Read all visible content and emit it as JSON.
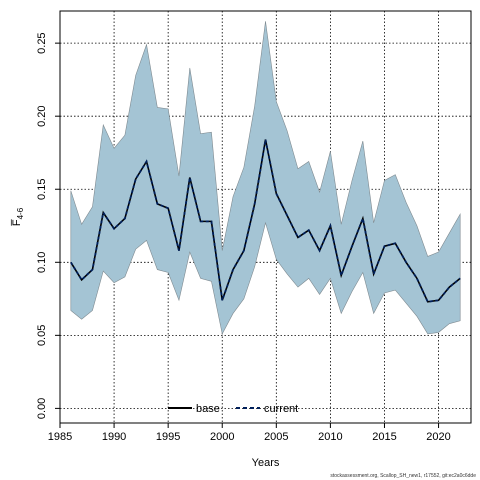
{
  "chart_data": {
    "type": "line",
    "title": "",
    "xlabel": "Years",
    "ylabel": "F̅",
    "ylabel_sub": "4-6",
    "xlim": [
      1985,
      2023
    ],
    "ylim": [
      -0.01,
      0.272
    ],
    "x_ticks": [
      1985,
      1990,
      1995,
      2000,
      2005,
      2010,
      2015,
      2020
    ],
    "x_tick_labels": [
      "1985",
      "1990",
      "1995",
      "2000",
      "2005",
      "2010",
      "2015",
      "2020"
    ],
    "y_ticks": [
      0.0,
      0.05,
      0.1,
      0.15,
      0.2,
      0.25
    ],
    "y_tick_labels": [
      "0.00",
      "0.05",
      "0.10",
      "0.15",
      "0.20",
      "0.25"
    ],
    "grid": true,
    "legend_position": "bottom-center",
    "x": [
      1986,
      1987,
      1988,
      1989,
      1990,
      1991,
      1992,
      1993,
      1994,
      1995,
      1996,
      1997,
      1998,
      1999,
      2000,
      2001,
      2002,
      2003,
      2004,
      2005,
      2006,
      2007,
      2008,
      2009,
      2010,
      2011,
      2012,
      2013,
      2014,
      2015,
      2016,
      2017,
      2018,
      2019,
      2020,
      2021,
      2022
    ],
    "series": [
      {
        "name": "base",
        "line_style": "solid",
        "color": "#000000",
        "values": [
          0.1,
          0.088,
          0.095,
          0.134,
          0.123,
          0.13,
          0.157,
          0.169,
          0.14,
          0.137,
          0.108,
          0.158,
          0.128,
          0.128,
          0.074,
          0.095,
          0.108,
          0.14,
          0.184,
          0.147,
          0.132,
          0.117,
          0.122,
          0.108,
          0.125,
          0.091,
          0.111,
          0.13,
          0.092,
          0.111,
          0.113,
          0.1,
          0.089,
          0.073,
          0.074,
          0.083,
          0.089
        ]
      },
      {
        "name": "current",
        "line_style": "dashed",
        "color": "#00205b",
        "values": [
          0.1,
          0.088,
          0.095,
          0.134,
          0.123,
          0.13,
          0.157,
          0.169,
          0.14,
          0.137,
          0.108,
          0.158,
          0.128,
          0.128,
          0.074,
          0.095,
          0.108,
          0.14,
          0.184,
          0.147,
          0.132,
          0.117,
          0.122,
          0.108,
          0.125,
          0.091,
          0.111,
          0.13,
          0.092,
          0.111,
          0.113,
          0.1,
          0.089,
          0.073,
          0.074,
          0.083,
          0.089
        ]
      }
    ],
    "band": {
      "upper": [
        0.149,
        0.126,
        0.138,
        0.194,
        0.178,
        0.187,
        0.228,
        0.249,
        0.206,
        0.205,
        0.159,
        0.233,
        0.188,
        0.189,
        0.108,
        0.145,
        0.165,
        0.207,
        0.265,
        0.21,
        0.19,
        0.164,
        0.169,
        0.148,
        0.176,
        0.126,
        0.156,
        0.183,
        0.127,
        0.156,
        0.16,
        0.141,
        0.125,
        0.104,
        0.107,
        0.12,
        0.133
      ],
      "lower": [
        0.067,
        0.061,
        0.067,
        0.094,
        0.086,
        0.09,
        0.109,
        0.115,
        0.095,
        0.093,
        0.074,
        0.107,
        0.089,
        0.087,
        0.051,
        0.065,
        0.075,
        0.097,
        0.127,
        0.102,
        0.092,
        0.083,
        0.089,
        0.078,
        0.089,
        0.065,
        0.08,
        0.093,
        0.065,
        0.079,
        0.081,
        0.072,
        0.063,
        0.051,
        0.052,
        0.058,
        0.06
      ],
      "fill_color": "#a4c4d4",
      "edge_color": "#7f8a90"
    },
    "footer": "stockassessment.org, Scallop_SH_new1, r17552, git:ec2a0c6dde"
  }
}
